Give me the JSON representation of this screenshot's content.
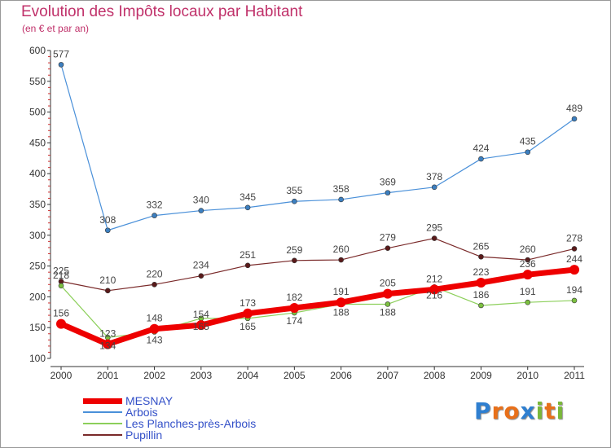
{
  "header": {
    "title": "Evolution des Impôts locaux par Habitant",
    "subtitle": "(en € et par an)"
  },
  "logo": {
    "text": "Proxiti",
    "letters": [
      "P",
      "r",
      "o",
      "x",
      "i",
      "t",
      "i"
    ],
    "colors": [
      "#2f7fd0",
      "#e8701a",
      "#e8701a",
      "#2f7fd0",
      "#7ab83a",
      "#e8701a",
      "#7ab83a"
    ]
  },
  "chart_data": {
    "type": "line",
    "title": "Evolution des Impôts locaux par Habitant",
    "subtitle": "(en € et par an)",
    "xlabel": "",
    "ylabel": "",
    "ylim": [
      100,
      600
    ],
    "yticks": [
      100,
      150,
      200,
      250,
      300,
      350,
      400,
      450,
      500,
      550,
      600
    ],
    "x": [
      "2000",
      "2001",
      "2002",
      "2003",
      "2004",
      "2005",
      "2006",
      "2007",
      "2008",
      "2009",
      "2010",
      "2011"
    ],
    "grid": false,
    "legend_position": "bottom-left",
    "series": [
      {
        "name": "Arbois",
        "color": "#4a90d9",
        "point": "#3c7fc0",
        "width": 1.2,
        "values": [
          577,
          308,
          332,
          340,
          345,
          355,
          358,
          369,
          378,
          424,
          435,
          489
        ],
        "labels": [
          "577",
          "308",
          "332",
          "340",
          "345",
          "355",
          "358",
          "369",
          "378",
          "424",
          "435",
          "489"
        ],
        "label_pos": "above"
      },
      {
        "name": "Pupillin",
        "color": "#7a2a2a",
        "point": "#5a1a1a",
        "width": 1.2,
        "values": [
          225,
          210,
          220,
          234,
          251,
          259,
          260,
          279,
          295,
          265,
          260,
          278
        ],
        "labels": [
          "225",
          "210",
          "220",
          "234",
          "251",
          "259",
          "260",
          "279",
          "295",
          "265",
          "260",
          "278"
        ],
        "label_pos": "above"
      },
      {
        "name": "Les Planches-près-Arbois",
        "color": "#8ccf5a",
        "point": "#7cc040",
        "width": 1.2,
        "values": [
          218,
          134,
          143,
          165,
          165,
          174,
          188,
          188,
          216,
          186,
          191,
          194
        ],
        "labels": [
          "218",
          "134",
          "143",
          "165",
          "165",
          "174",
          "188",
          "188",
          "216",
          "186",
          "191",
          "194"
        ],
        "label_pos": "mixed"
      },
      {
        "name": "MESNAY",
        "color": "#ee0000",
        "point": "#ee0000",
        "width": 7,
        "values": [
          156,
          123,
          148,
          154,
          173,
          182,
          191,
          205,
          212,
          223,
          236,
          244
        ],
        "labels": [
          "156",
          "123",
          "148",
          "154",
          "173",
          "182",
          "191",
          "205",
          "212",
          "223",
          "236",
          "244"
        ],
        "label_pos": "above"
      }
    ],
    "legend": [
      "MESNAY",
      "Arbois",
      "Les Planches-près-Arbois",
      "Pupillin"
    ]
  }
}
